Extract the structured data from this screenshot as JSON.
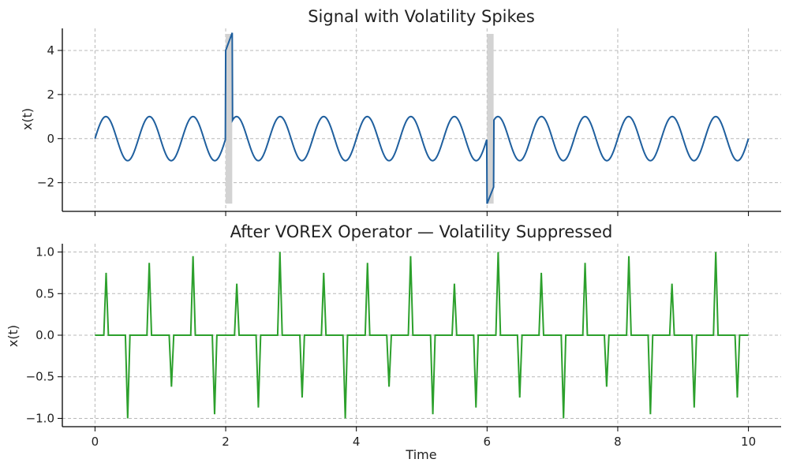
{
  "chart_data": [
    {
      "type": "line",
      "title": "Signal with Volatility Spikes",
      "xlabel": "",
      "ylabel": "x(t)",
      "xlim": [
        -0.5,
        10.5
      ],
      "ylim": [
        -3.3,
        5.0
      ],
      "xticks": [
        0,
        2,
        4,
        6,
        8,
        10
      ],
      "xtick_labels_visible": false,
      "yticks": [
        -2,
        0,
        2,
        4
      ],
      "ytick_labels": [
        "−2",
        "0",
        "2",
        "4"
      ],
      "grid": true,
      "color": "#1f5f9e",
      "signal": {
        "base": "sin(2*pi*1.5*t)",
        "t_range": [
          0,
          10
        ],
        "spikes": [
          {
            "t_start": 2.0,
            "t_end": 2.1,
            "values": [
              4.0,
              4.8
            ],
            "band_y": [
              -2.95,
              4.75
            ]
          },
          {
            "t_start": 6.0,
            "t_end": 6.1,
            "values": [
              -2.95,
              -2.2
            ],
            "band_y": [
              -2.95,
              4.75
            ]
          }
        ]
      },
      "highlight_color": "#d3d3d3"
    },
    {
      "type": "line",
      "title": "After VOREX Operator — Volatility Suppressed",
      "xlabel": "Time",
      "ylabel": "x(t)",
      "xlim": [
        -0.5,
        10.5
      ],
      "ylim": [
        -1.1,
        1.1
      ],
      "xticks": [
        0,
        2,
        4,
        6,
        8,
        10
      ],
      "xtick_labels": [
        "0",
        "2",
        "4",
        "6",
        "8",
        "10"
      ],
      "yticks": [
        -1.0,
        -0.5,
        0.0,
        0.5,
        1.0
      ],
      "ytick_labels": [
        "−1.0",
        "−0.5",
        "0.0",
        "0.5",
        "1.0"
      ],
      "grid": true,
      "color": "#2ca02c",
      "baseline": 0.0,
      "spikes": [
        {
          "t": 0.17,
          "v": 0.75
        },
        {
          "t": 0.5,
          "v": -1.0
        },
        {
          "t": 0.83,
          "v": 0.87
        },
        {
          "t": 1.17,
          "v": -0.62
        },
        {
          "t": 1.5,
          "v": 0.95
        },
        {
          "t": 1.83,
          "v": -0.95
        },
        {
          "t": 2.17,
          "v": 0.62
        },
        {
          "t": 2.5,
          "v": -0.87
        },
        {
          "t": 2.83,
          "v": 1.0
        },
        {
          "t": 3.17,
          "v": -0.75
        },
        {
          "t": 3.5,
          "v": 0.75
        },
        {
          "t": 3.83,
          "v": -1.0
        },
        {
          "t": 4.17,
          "v": 0.87
        },
        {
          "t": 4.5,
          "v": -0.62
        },
        {
          "t": 4.83,
          "v": 0.95
        },
        {
          "t": 5.17,
          "v": -0.95
        },
        {
          "t": 5.5,
          "v": 0.62
        },
        {
          "t": 5.83,
          "v": -0.87
        },
        {
          "t": 6.17,
          "v": 1.0
        },
        {
          "t": 6.5,
          "v": -0.75
        },
        {
          "t": 6.83,
          "v": 0.75
        },
        {
          "t": 7.17,
          "v": -1.0
        },
        {
          "t": 7.5,
          "v": 0.87
        },
        {
          "t": 7.83,
          "v": -0.62
        },
        {
          "t": 8.17,
          "v": 0.95
        },
        {
          "t": 8.5,
          "v": -0.95
        },
        {
          "t": 8.83,
          "v": 0.62
        },
        {
          "t": 9.17,
          "v": -0.87
        },
        {
          "t": 9.5,
          "v": 1.0
        },
        {
          "t": 9.83,
          "v": -0.75
        }
      ]
    }
  ]
}
